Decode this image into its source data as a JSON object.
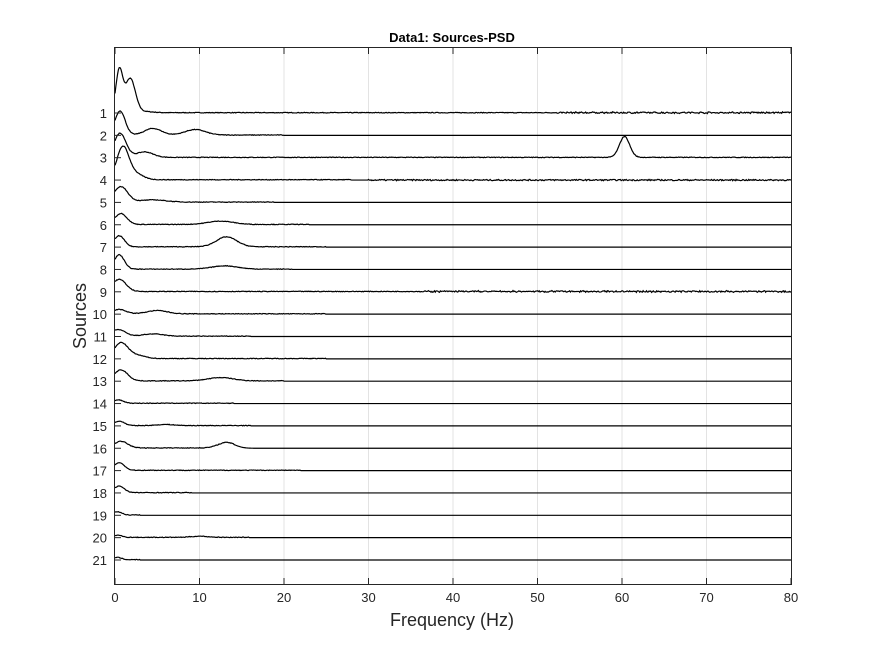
{
  "chart_data": {
    "type": "line",
    "title": "Data1: Sources-PSD",
    "xlabel": "Frequency (Hz)",
    "ylabel": "Sources",
    "xlim": [
      0,
      80
    ],
    "xticks": [
      0,
      10,
      20,
      30,
      40,
      50,
      60,
      70,
      80
    ],
    "yticks": [
      "1",
      "2",
      "3",
      "4",
      "5",
      "6",
      "7",
      "8",
      "9",
      "10",
      "11",
      "12",
      "13",
      "14",
      "15",
      "16",
      "17",
      "18",
      "19",
      "20",
      "21"
    ],
    "grid": {
      "x": true,
      "y": false
    },
    "color": "#000000",
    "series": [
      {
        "label": "1",
        "peaks": [
          [
            0.5,
            1.9,
            0.4
          ],
          [
            1.8,
            1.55,
            0.6
          ],
          [
            3.5,
            0.05,
            1.0
          ]
        ],
        "extent": 80,
        "noise": [
          [
            52,
            80
          ]
        ]
      },
      {
        "label": "2",
        "peaks": [
          [
            0.6,
            1.1,
            0.6
          ],
          [
            4.5,
            0.3,
            1.0
          ],
          [
            9.5,
            0.25,
            1.2
          ]
        ],
        "extent": 20,
        "noise": []
      },
      {
        "label": "3",
        "peaks": [
          [
            0.6,
            1.1,
            0.7
          ],
          [
            3.5,
            0.25,
            1.0
          ],
          [
            60.3,
            0.95,
            0.6
          ]
        ],
        "extent": 80,
        "noise": []
      },
      {
        "label": "4",
        "peaks": [
          [
            0.9,
            1.4,
            0.7
          ],
          [
            2.2,
            0.3,
            1.0
          ]
        ],
        "extent": 28,
        "noise": [
          [
            30,
            80
          ]
        ]
      },
      {
        "label": "5",
        "peaks": [
          [
            0.7,
            0.7,
            0.8
          ],
          [
            4.5,
            0.1,
            1.5
          ]
        ],
        "extent": 19,
        "noise": []
      },
      {
        "label": "6",
        "peaks": [
          [
            0.7,
            0.5,
            0.7
          ],
          [
            12.5,
            0.15,
            1.5
          ]
        ],
        "extent": 23,
        "noise": []
      },
      {
        "label": "7",
        "peaks": [
          [
            0.5,
            0.5,
            0.6
          ],
          [
            13.2,
            0.45,
            1.2
          ]
        ],
        "extent": 25,
        "noise": []
      },
      {
        "label": "8",
        "peaks": [
          [
            0.5,
            0.65,
            0.6
          ],
          [
            13,
            0.15,
            1.5
          ]
        ],
        "extent": 21,
        "noise": []
      },
      {
        "label": "9",
        "peaks": [
          [
            0.5,
            0.55,
            0.8
          ]
        ],
        "extent": 80,
        "noise": [
          [
            36,
            80
          ]
        ]
      },
      {
        "label": "10",
        "peaks": [
          [
            0.5,
            0.2,
            0.8
          ],
          [
            5,
            0.15,
            1.2
          ]
        ],
        "extent": 25,
        "noise": []
      },
      {
        "label": "11",
        "peaks": [
          [
            0.4,
            0.3,
            0.8
          ],
          [
            4.5,
            0.1,
            1.2
          ]
        ],
        "extent": 16,
        "noise": []
      },
      {
        "label": "12",
        "peaks": [
          [
            0.7,
            0.7,
            0.8
          ],
          [
            2.5,
            0.15,
            1.0
          ]
        ],
        "extent": 25,
        "noise": []
      },
      {
        "label": "13",
        "peaks": [
          [
            0.7,
            0.5,
            0.8
          ],
          [
            12.5,
            0.15,
            1.5
          ]
        ],
        "extent": 20,
        "noise": []
      },
      {
        "label": "14",
        "peaks": [
          [
            0.4,
            0.15,
            0.6
          ]
        ],
        "extent": 14,
        "noise": []
      },
      {
        "label": "15",
        "peaks": [
          [
            0.5,
            0.2,
            0.6
          ],
          [
            6,
            0.05,
            1.0
          ]
        ],
        "extent": 16,
        "noise": []
      },
      {
        "label": "16",
        "peaks": [
          [
            0.7,
            0.3,
            0.8
          ],
          [
            13.2,
            0.25,
            1.0
          ]
        ],
        "extent": 14,
        "noise": []
      },
      {
        "label": "17",
        "peaks": [
          [
            0.5,
            0.35,
            0.6
          ]
        ],
        "extent": 22,
        "noise": []
      },
      {
        "label": "18",
        "peaks": [
          [
            0.5,
            0.3,
            0.6
          ]
        ],
        "extent": 9,
        "noise": []
      },
      {
        "label": "19",
        "peaks": [
          [
            0.3,
            0.15,
            0.5
          ]
        ],
        "extent": 3,
        "noise": []
      },
      {
        "label": "20",
        "peaks": [
          [
            0.3,
            0.1,
            0.5
          ],
          [
            10,
            0.05,
            1.0
          ]
        ],
        "extent": 16,
        "noise": []
      },
      {
        "label": "21",
        "peaks": [
          [
            0.3,
            0.1,
            0.5
          ]
        ],
        "extent": 3,
        "noise": []
      }
    ]
  }
}
